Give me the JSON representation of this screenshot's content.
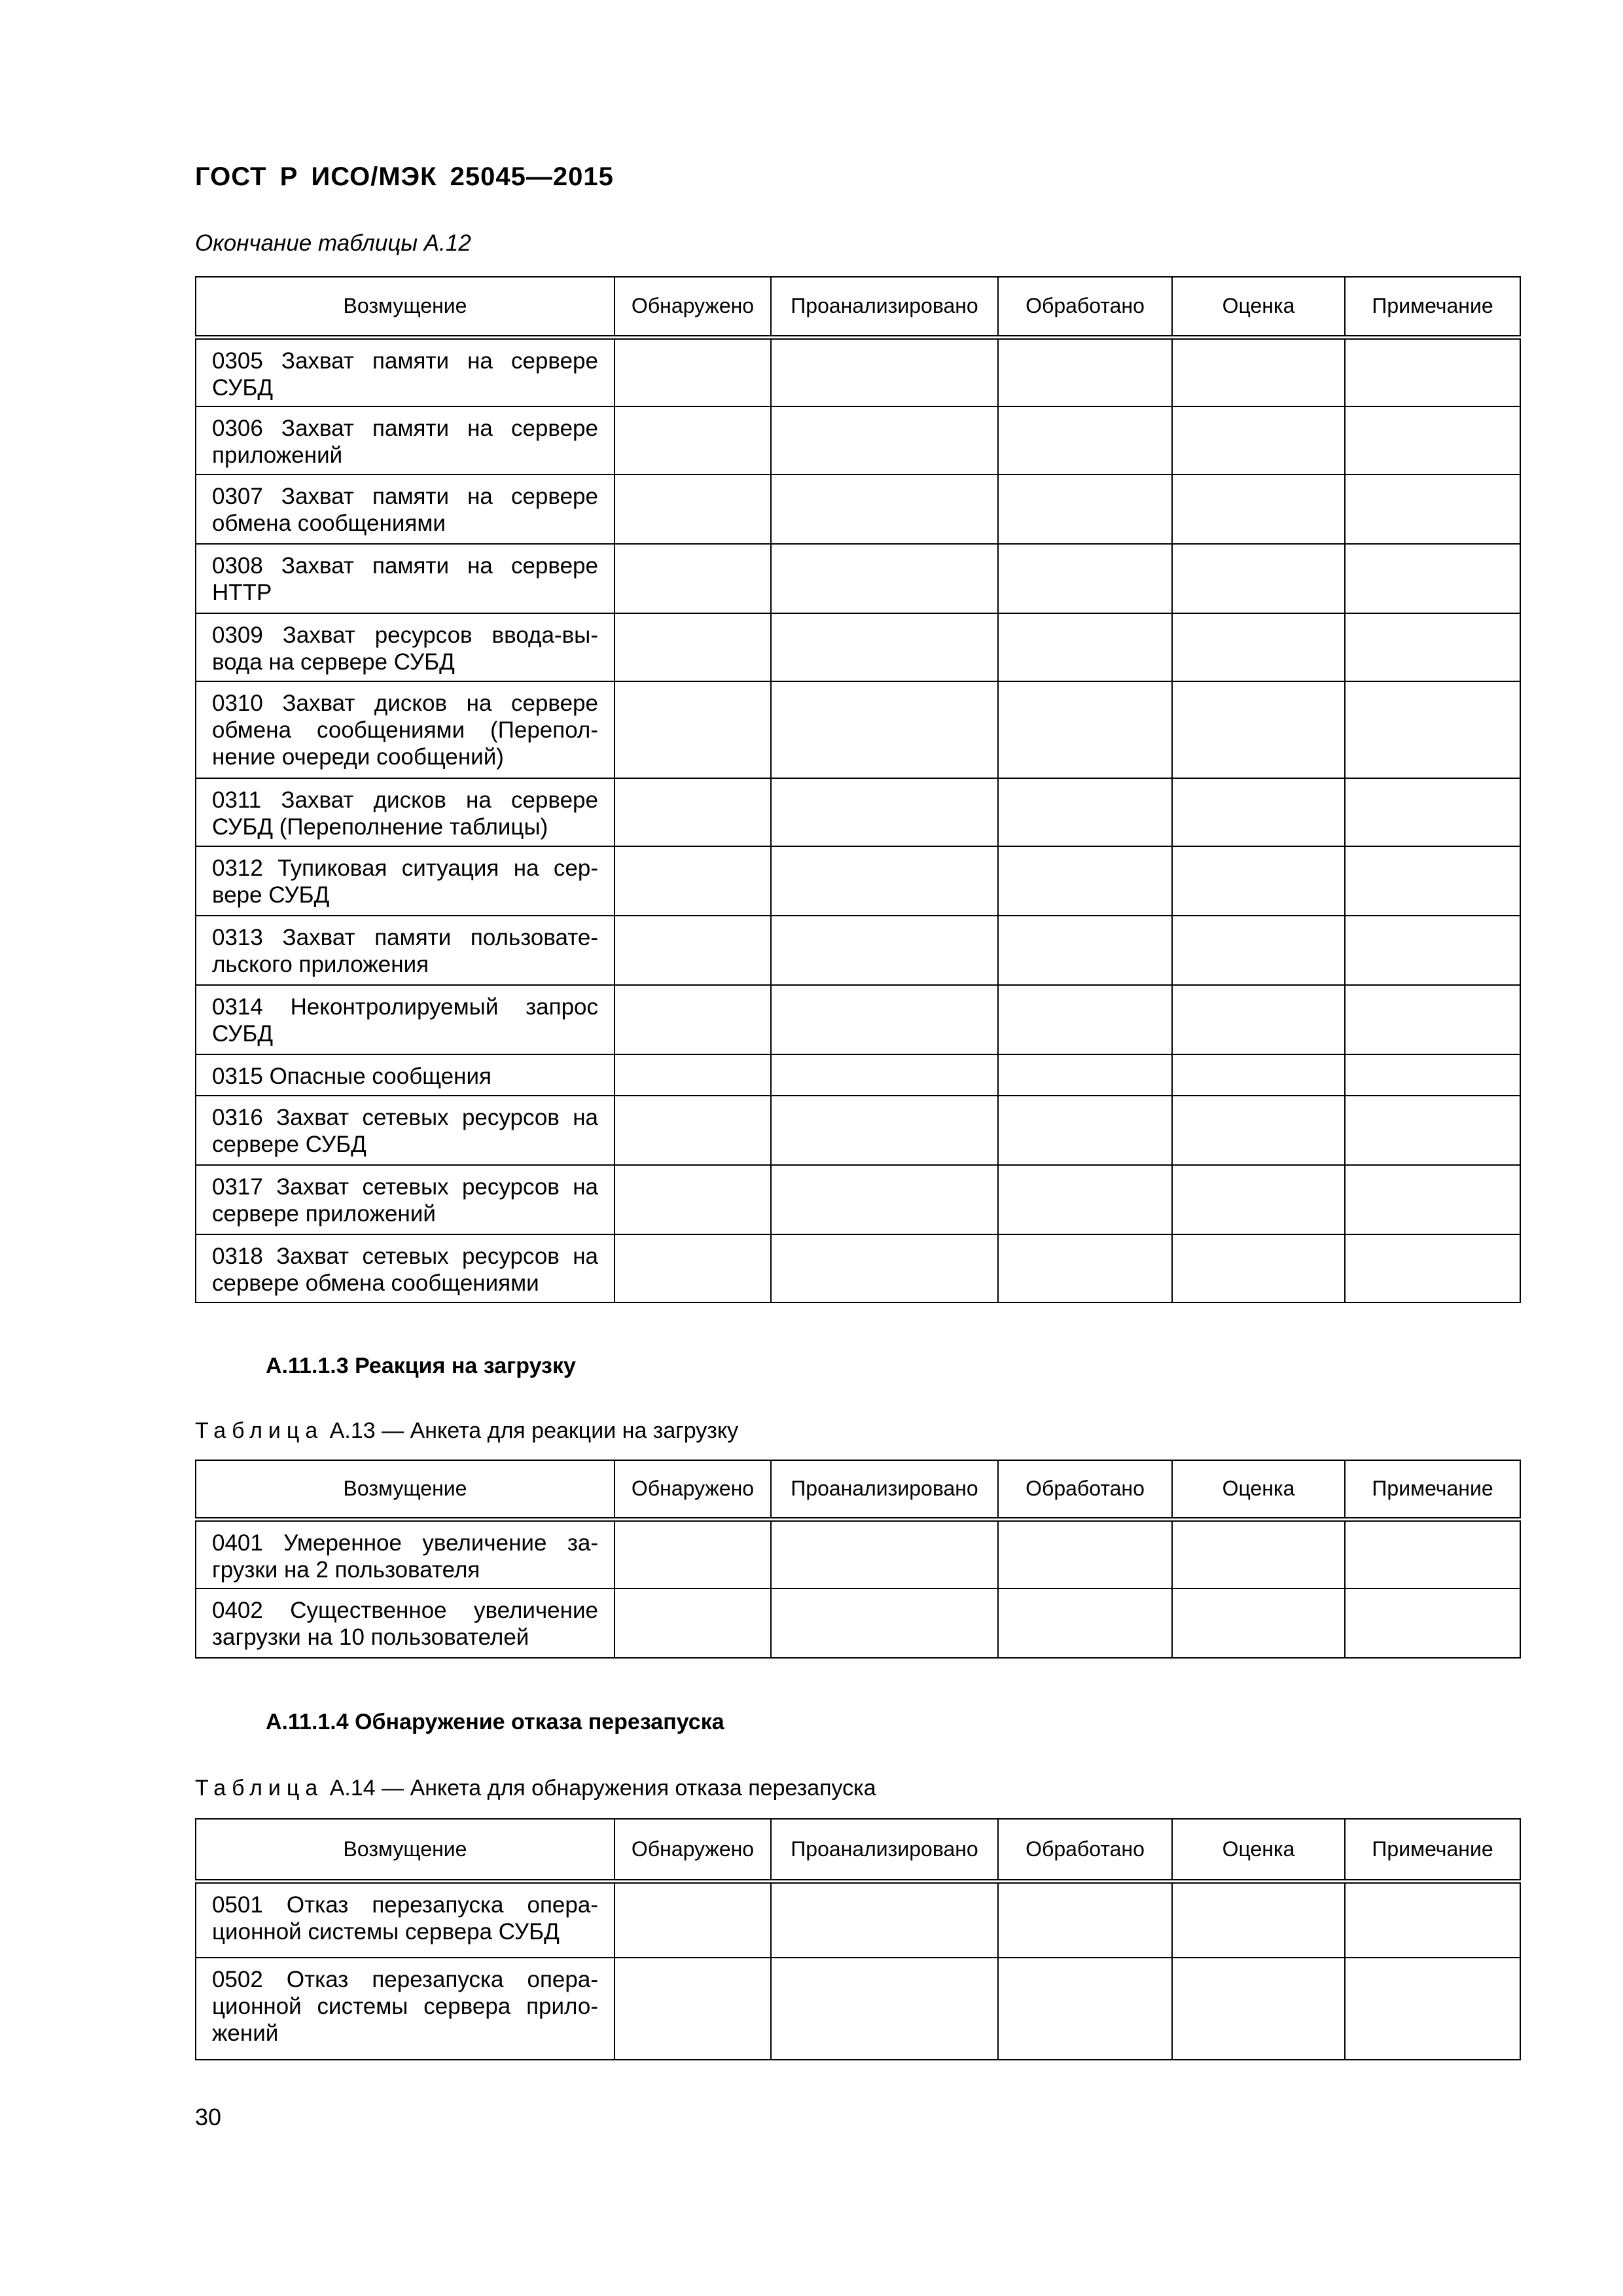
{
  "header": {
    "doc_title": "ГОСТ Р ИСО/МЭК 25045—2015",
    "continuation": "Окончание таблицы А.12"
  },
  "columns": [
    "Возмущение",
    "Обнаружено",
    "Проанализировано",
    "Обработано",
    "Оценка",
    "Примечание"
  ],
  "table_a12": {
    "rows": [
      {
        "lines": [
          "0305 Захват памяти на сервере",
          "СУБД"
        ]
      },
      {
        "lines": [
          "0306 Захват памяти на сервере",
          "приложений"
        ]
      },
      {
        "lines": [
          "0307 Захват памяти на сервере",
          "обмена сообщениями"
        ]
      },
      {
        "lines": [
          "0308 Захват памяти на сервере",
          "HTTP"
        ]
      },
      {
        "lines": [
          "0309 Захват ресурсов ввода-вы-",
          "вода на сервере СУБД"
        ]
      },
      {
        "lines": [
          "0310 Захват дисков на сервере",
          "обмена сообщениями (Перепол-",
          "нение очереди сообщений)"
        ]
      },
      {
        "lines": [
          "0311 Захват дисков на сервере",
          "СУБД (Переполнение таблицы)"
        ]
      },
      {
        "lines": [
          "0312 Тупиковая ситуация на сер-",
          "вере СУБД"
        ]
      },
      {
        "lines": [
          "0313 Захват памяти пользовате-",
          "льского приложения"
        ]
      },
      {
        "lines": [
          "0314 Неконтролируемый запрос",
          "СУБД"
        ]
      },
      {
        "lines": [
          "0315 Опасные сообщения"
        ]
      },
      {
        "lines": [
          "0316 Захват сетевых ресурсов на",
          "сервере СУБД"
        ]
      },
      {
        "lines": [
          "0317 Захват сетевых ресурсов на",
          "сервере приложений"
        ]
      },
      {
        "lines": [
          "0318 Захват сетевых ресурсов на",
          "сервере обмена сообщениями"
        ]
      }
    ]
  },
  "section_a1113": {
    "heading": "А.11.1.3  Реакция на загрузку",
    "caption_word": "Таблица",
    "caption_rest": " А.13 — Анкета для реакции на загрузку"
  },
  "table_a13": {
    "rows": [
      {
        "lines": [
          "0401 Умеренное увеличение за-",
          "грузки на 2 пользователя"
        ]
      },
      {
        "lines": [
          "0402 Существенное увеличение",
          "загрузки на 10 пользователей"
        ]
      }
    ]
  },
  "section_a1114": {
    "heading": "А.11.1.4  Обнаружение отказа перезапуска",
    "caption_word": "Таблица",
    "caption_rest": " А.14 — Анкета для обнаружения отказа перезапуска"
  },
  "table_a14": {
    "rows": [
      {
        "lines": [
          "0501 Отказ перезапуска опера-",
          "ционной системы сервера СУБД"
        ]
      },
      {
        "lines": [
          "0502 Отказ перезапуска опера-",
          "ционной системы сервера прило-",
          "жений"
        ]
      }
    ]
  },
  "footer": {
    "page_number": "30"
  }
}
